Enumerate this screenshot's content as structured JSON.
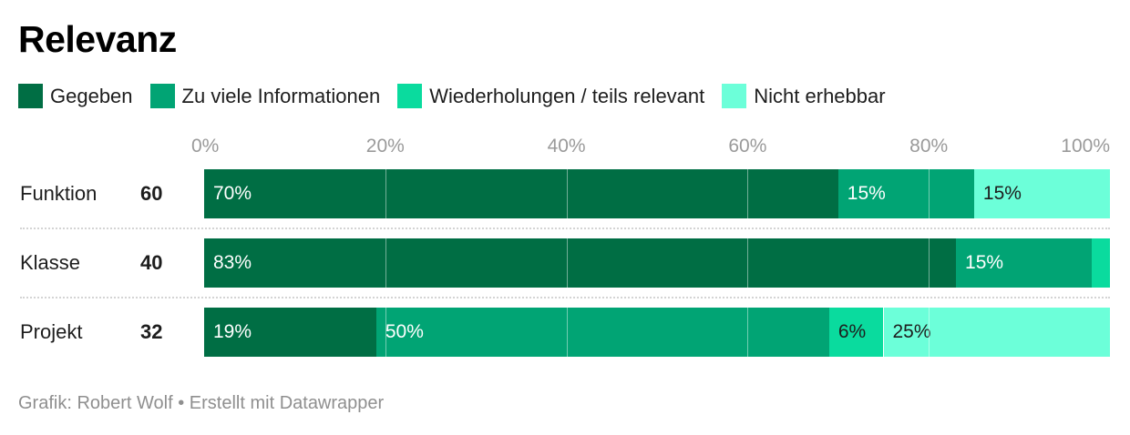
{
  "title": "Relevanz",
  "footer": "Grafik: Robert Wolf • Erstellt mit Datawrapper",
  "colors": {
    "Gegeben": "#006e44",
    "Zu viele Informationen": "#01a474",
    "Wiederholungen / teils relevant": "#0adb9e",
    "Nicht erhebbar": "#6cffd9"
  },
  "chart_data": {
    "type": "bar",
    "orientation": "horizontal",
    "stacked": true,
    "title": "Relevanz",
    "xlim": [
      0,
      100
    ],
    "x_ticks": [
      "0%",
      "20%",
      "40%",
      "60%",
      "80%",
      "100%"
    ],
    "grid": true,
    "legend_position": "top",
    "categories": [
      "Funktion",
      "Klasse",
      "Projekt"
    ],
    "counts": [
      60,
      40,
      32
    ],
    "series": [
      {
        "name": "Gegeben",
        "color": "#006e44",
        "values": [
          70,
          83,
          19
        ],
        "labels": [
          "70%",
          "83%",
          "19%"
        ]
      },
      {
        "name": "Zu viele Informationen",
        "color": "#01a474",
        "values": [
          15,
          15,
          50
        ],
        "labels": [
          "15%",
          "15%",
          "50%"
        ]
      },
      {
        "name": "Wiederholungen / teils relevant",
        "color": "#0adb9e",
        "values": [
          0,
          2,
          6
        ],
        "labels": [
          "",
          "",
          "6%"
        ]
      },
      {
        "name": "Nicht erhebbar",
        "color": "#6cffd9",
        "values": [
          15,
          0,
          25
        ],
        "labels": [
          "15%",
          "",
          "25%"
        ]
      }
    ]
  }
}
